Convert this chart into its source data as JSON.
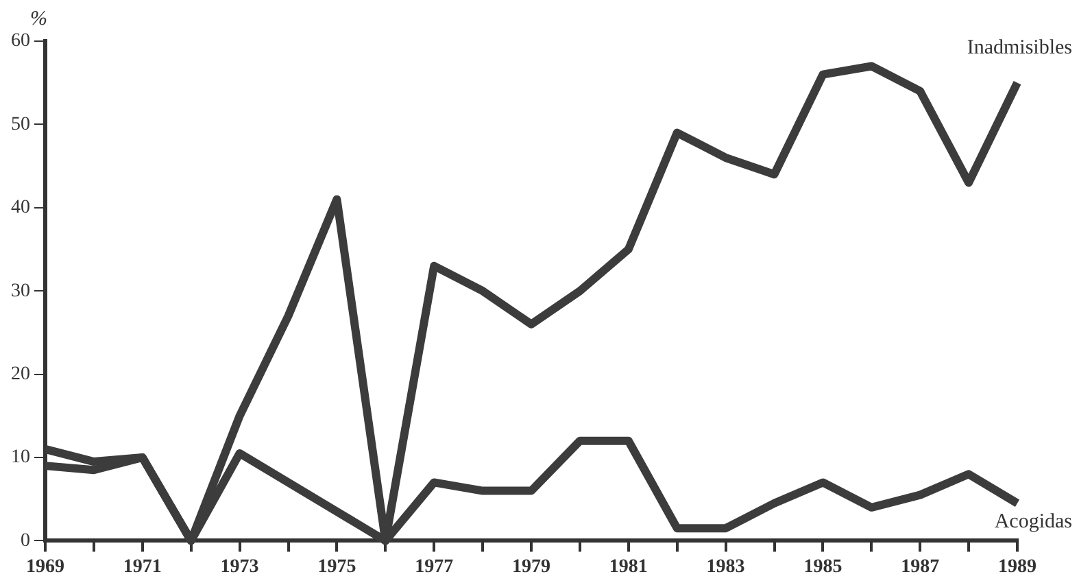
{
  "chart_data": {
    "type": "line",
    "ylabel": "%",
    "x": [
      1969,
      1970,
      1971,
      1972,
      1973,
      1974,
      1975,
      1976,
      1977,
      1978,
      1979,
      1980,
      1981,
      1982,
      1983,
      1984,
      1985,
      1986,
      1987,
      1988,
      1989
    ],
    "series": [
      {
        "name": "Inadmisibles",
        "color": "#3c3c3c",
        "values": [
          11,
          9.5,
          10,
          0,
          15,
          27,
          41,
          0,
          33,
          30,
          26,
          30,
          35,
          49,
          46,
          44,
          56,
          57,
          54,
          43,
          55
        ]
      },
      {
        "name": "Acogidas",
        "color": "#3c3c3c",
        "values": [
          9,
          8.5,
          10,
          0,
          10.5,
          7,
          3.5,
          0,
          7,
          6,
          6,
          12,
          12,
          1.5,
          1.5,
          4.5,
          7,
          4,
          5.5,
          8,
          4.5
        ]
      }
    ],
    "xlim": [
      1969,
      1989
    ],
    "xticks": [
      1969,
      {
        "value": 1970,
        "label": null
      },
      1971,
      {
        "value": 1972,
        "label": null
      },
      1973,
      {
        "value": 1974,
        "label": null
      },
      1975,
      {
        "value": 1976,
        "label": null
      },
      1977,
      {
        "value": 1978,
        "label": null
      },
      1979,
      {
        "value": 1980,
        "label": null
      },
      1981,
      {
        "value": 1982,
        "label": null
      },
      1983,
      {
        "value": 1984,
        "label": null
      },
      1985,
      {
        "value": 1986,
        "label": null
      },
      1987,
      {
        "value": 1988,
        "label": null
      },
      1989
    ],
    "ylim": [
      0,
      60
    ],
    "yticks": [
      0,
      10,
      20,
      30,
      40,
      50,
      60
    ],
    "grid": false,
    "legend": false,
    "marker": "none",
    "line_style": "solid"
  }
}
